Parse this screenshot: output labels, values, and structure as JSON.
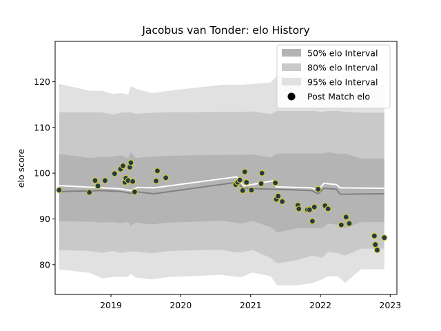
{
  "chart_data": {
    "type": "line",
    "title": "Jacobus van Tonder: elo History",
    "xlabel": "",
    "ylabel": "elo score",
    "xlim": [
      "2018-03-15",
      "2023-02-05"
    ],
    "ylim": [
      73.5,
      128.8
    ],
    "x_ticks": [
      "2019",
      "2020",
      "2021",
      "2022",
      "2023"
    ],
    "y_ticks": [
      80,
      90,
      100,
      110,
      120
    ],
    "grid": false,
    "legend_position": "top-right",
    "legend": [
      {
        "label": "50% elo Interval",
        "kind": "band",
        "color": "#b4b4b4"
      },
      {
        "label": "80% elo Interval",
        "kind": "band",
        "color": "#c9c9c9"
      },
      {
        "label": "95% elo Interval",
        "kind": "band",
        "color": "#e1e1e1"
      },
      {
        "label": "Post Match elo",
        "kind": "marker",
        "color": "#000000"
      }
    ],
    "colors": {
      "band95": "#e1e1e1",
      "band80": "#c9c9c9",
      "band50": "#b4b4b4",
      "median_line": "#808080",
      "mean_line": "#ffffff",
      "point_fill": "#1f3b4d",
      "point_edge": "#d4c82a"
    },
    "series": [
      {
        "kind": "interval_bands",
        "x": [
          "2018-04-05",
          "2018-09-15",
          "2018-11-15",
          "2019-01-10",
          "2019-02-20",
          "2019-04-01",
          "2019-04-15",
          "2019-05-10",
          "2019-08-01",
          "2019-11-01",
          "2020-08-01",
          "2020-10-10",
          "2020-11-15",
          "2021-01-10",
          "2021-04-15",
          "2021-05-20",
          "2021-09-01",
          "2021-11-20",
          "2022-01-10",
          "2022-02-10",
          "2022-04-01",
          "2022-05-10",
          "2022-08-01",
          "2022-12-01"
        ],
        "p2_5": [
          79.0,
          78.2,
          77.0,
          77.3,
          77.4,
          77.3,
          78.0,
          77.2,
          76.8,
          77.3,
          77.8,
          77.4,
          77.3,
          78.3,
          77.5,
          75.5,
          75.5,
          76.0,
          76.8,
          77.5,
          77.5,
          76.0,
          79.0,
          79.0
        ],
        "p10": [
          83.2,
          83.0,
          82.6,
          83.0,
          82.6,
          82.8,
          82.9,
          82.9,
          82.5,
          83.0,
          83.3,
          82.7,
          82.7,
          83.2,
          81.5,
          80.3,
          81.0,
          82.0,
          81.5,
          82.8,
          82.5,
          82.0,
          83.5,
          83.5
        ],
        "p25": [
          89.5,
          89.4,
          89.2,
          89.3,
          89.1,
          89.3,
          88.5,
          89.2,
          88.8,
          89.2,
          89.6,
          89.2,
          89.0,
          89.6,
          88.2,
          87.0,
          88.0,
          88.0,
          88.0,
          89.0,
          88.7,
          88.0,
          89.3,
          89.3
        ],
        "p75": [
          104.2,
          103.3,
          103.6,
          103.6,
          103.9,
          103.3,
          104.6,
          103.3,
          103.6,
          103.8,
          104.0,
          104.0,
          104.0,
          104.1,
          103.4,
          104.3,
          104.3,
          104.3,
          104.3,
          104.6,
          104.2,
          104.3,
          103.2,
          103.2
        ],
        "p90": [
          113.3,
          113.3,
          113.3,
          112.8,
          113.2,
          113.3,
          113.3,
          113.0,
          113.2,
          113.3,
          113.4,
          113.4,
          113.4,
          113.5,
          112.9,
          113.6,
          113.6,
          113.6,
          113.4,
          113.6,
          113.6,
          113.4,
          113.2,
          113.2
        ],
        "p97_5": [
          119.5,
          118.0,
          118.0,
          117.3,
          117.5,
          117.2,
          119.0,
          118.5,
          117.5,
          118.0,
          119.3,
          119.3,
          119.3,
          119.5,
          119.8,
          121.3,
          121.3,
          120.3,
          120.3,
          121.3,
          121.3,
          119.8,
          119.3,
          119.3
        ]
      },
      {
        "kind": "median_line",
        "x": [
          "2018-04-05",
          "2018-11-15",
          "2019-02-20",
          "2019-04-15",
          "2019-05-20",
          "2019-08-15",
          "2020-10-20",
          "2020-11-25",
          "2021-04-25",
          "2021-05-15",
          "2021-11-15",
          "2021-12-20",
          "2022-01-20",
          "2022-03-25",
          "2022-04-15",
          "2022-12-01"
        ],
        "values": [
          96.0,
          96.2,
          96.0,
          95.6,
          95.9,
          95.5,
          98.0,
          96.7,
          96.5,
          96.5,
          96.2,
          95.5,
          96.7,
          96.5,
          95.4,
          95.5
        ]
      },
      {
        "kind": "mean_line",
        "x": [
          "2018-04-05",
          "2018-11-15",
          "2019-02-20",
          "2019-04-15",
          "2019-05-20",
          "2019-08-15",
          "2020-10-20",
          "2020-11-25",
          "2021-04-25",
          "2021-05-15",
          "2021-11-15",
          "2021-12-20",
          "2022-01-20",
          "2022-03-25",
          "2022-04-15",
          "2022-12-01"
        ],
        "values": [
          97.3,
          96.8,
          96.6,
          96.2,
          96.9,
          96.8,
          99.2,
          97.2,
          98.3,
          97.0,
          96.8,
          96.3,
          97.8,
          97.5,
          96.8,
          96.7
        ]
      },
      {
        "kind": "points",
        "name": "Post Match elo",
        "x": [
          "2018-04-05",
          "2018-09-10",
          "2018-10-10",
          "2018-10-25",
          "2018-12-01",
          "2019-01-20",
          "2019-02-20",
          "2019-03-05",
          "2019-03-15",
          "2019-03-20",
          "2019-04-01",
          "2019-04-10",
          "2019-04-15",
          "2019-04-25",
          "2019-05-05",
          "2019-08-25",
          "2019-09-01",
          "2019-10-15",
          "2020-10-15",
          "2020-10-25",
          "2020-11-05",
          "2020-11-20",
          "2020-12-01",
          "2020-12-10",
          "2021-01-05",
          "2021-02-25",
          "2021-03-01",
          "2021-05-10",
          "2021-05-15",
          "2021-05-25",
          "2021-06-15",
          "2021-09-05",
          "2021-09-10",
          "2021-10-25",
          "2021-11-05",
          "2021-11-20",
          "2021-11-30",
          "2021-12-20",
          "2022-01-25",
          "2022-02-10",
          "2022-04-20",
          "2022-05-15",
          "2022-06-01",
          "2022-10-10",
          "2022-10-15",
          "2022-10-25",
          "2022-12-01"
        ],
        "values": [
          96.3,
          95.8,
          98.4,
          97.2,
          98.4,
          99.9,
          100.9,
          101.6,
          98.0,
          98.9,
          98.4,
          101.3,
          102.3,
          98.2,
          95.9,
          98.3,
          100.5,
          99.0,
          97.5,
          98.0,
          98.5,
          96.2,
          100.3,
          98.0,
          96.3,
          97.7,
          100.0,
          97.9,
          94.3,
          95.0,
          93.8,
          93.0,
          92.2,
          92.0,
          92.0,
          89.5,
          92.6,
          96.5,
          92.9,
          92.2,
          88.7,
          90.4,
          89.0,
          86.3,
          84.4,
          83.2,
          85.9
        ]
      }
    ]
  }
}
